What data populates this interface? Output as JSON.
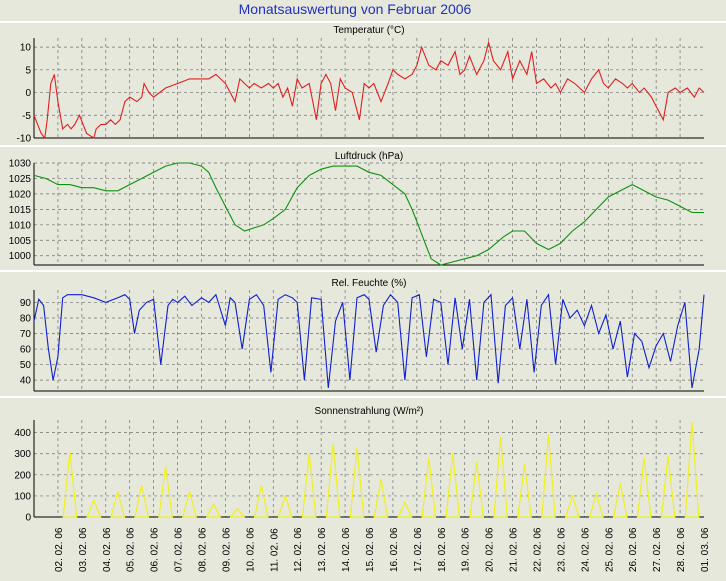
{
  "title": "Monatsauswertung von Februar 2006",
  "colors": {
    "background": "#e6e8dc",
    "title": "#2030c0",
    "temperature": "#e02020",
    "pressure": "#109010",
    "humidity": "#1020d0",
    "radiation": "#f0f020",
    "grid": "#707070",
    "separator": "#ffffff"
  },
  "x_labels": [
    "02. 02. 06",
    "03. 02. 06",
    "04. 02. 06",
    "05. 02. 06",
    "06. 02. 06",
    "07. 02. 06",
    "08. 02. 06",
    "09. 02. 06",
    "10. 02. 06",
    "11. 02. 06",
    "12. 02. 06",
    "13. 02. 06",
    "14. 02. 06",
    "15. 02. 06",
    "16. 02. 06",
    "17. 02. 06",
    "18. 02. 06",
    "19. 02. 06",
    "20. 02. 06",
    "21. 02. 06",
    "22. 02. 06",
    "23. 02. 06",
    "24. 02. 06",
    "25. 02. 06",
    "26. 02. 06",
    "27. 02. 06",
    "28. 02. 06",
    "01. 03. 06"
  ],
  "chart_data": [
    {
      "type": "line",
      "title": "Temperatur (°C)",
      "ylim": [
        -10,
        12
      ],
      "yticks": [
        -10,
        -5,
        0,
        5,
        10
      ],
      "grid": true,
      "x_unit": "days since 01.02.06 00:00",
      "series": [
        {
          "name": "Temperatur",
          "x": [
            0,
            0.15,
            0.3,
            0.45,
            0.55,
            0.7,
            0.85,
            1.0,
            1.2,
            1.4,
            1.55,
            1.7,
            1.9,
            2.2,
            2.5,
            2.6,
            2.8,
            3.0,
            3.2,
            3.4,
            3.6,
            3.8,
            4.0,
            4.3,
            4.5,
            4.6,
            4.8,
            5.0,
            5.5,
            6.0,
            6.5,
            7.0,
            7.3,
            7.6,
            8.0,
            8.2,
            8.4,
            8.6,
            8.8,
            9.0,
            9.2,
            9.5,
            9.8,
            10.0,
            10.2,
            10.4,
            10.6,
            10.8,
            11.0,
            11.2,
            11.5,
            11.8,
            12.0,
            12.2,
            12.4,
            12.6,
            12.8,
            13.0,
            13.3,
            13.6,
            13.8,
            14.0,
            14.2,
            14.5,
            14.8,
            15.0,
            15.2,
            15.5,
            15.8,
            16.0,
            16.2,
            16.5,
            16.8,
            17.0,
            17.3,
            17.6,
            17.8,
            18.0,
            18.2,
            18.5,
            18.8,
            19.0,
            19.2,
            19.5,
            19.8,
            20.0,
            20.3,
            20.6,
            20.8,
            21.0,
            21.3,
            21.6,
            21.8,
            22.0,
            22.3,
            22.6,
            22.8,
            23.0,
            23.3,
            23.6,
            23.8,
            24.0,
            24.3,
            24.6,
            24.8,
            25.0,
            25.3,
            25.5,
            25.8,
            26.0,
            26.3,
            26.5,
            26.8,
            27.0,
            27.3,
            27.6,
            27.8,
            28.0
          ],
          "y": [
            -5,
            -7,
            -9,
            -10,
            -6,
            2,
            4,
            -2,
            -8,
            -7,
            -8,
            -7,
            -5,
            -9,
            -10,
            -8,
            -7,
            -7,
            -6,
            -7,
            -6,
            -2,
            -1,
            -2,
            -1,
            2,
            0,
            -1,
            1,
            2,
            3,
            3,
            3,
            4,
            2,
            0,
            -2,
            3,
            2,
            1,
            2,
            1,
            2,
            1,
            2,
            -1,
            1,
            -3,
            3,
            1,
            2,
            -6,
            2,
            4,
            2,
            -4,
            3,
            1,
            0,
            -6,
            2,
            1,
            2,
            -2,
            2,
            5,
            4,
            3,
            4,
            6,
            10,
            6,
            5,
            7,
            6,
            9,
            4,
            5,
            8,
            4,
            7,
            11,
            7,
            5,
            9,
            3,
            7,
            4,
            9,
            2,
            3,
            1,
            2,
            0,
            3,
            2,
            1,
            0,
            3,
            5,
            2,
            1,
            3,
            2,
            1,
            2,
            0,
            1,
            -1,
            -3,
            -6,
            0,
            1,
            0,
            1,
            -1,
            1,
            0
          ]
        }
      ]
    },
    {
      "type": "line",
      "title": "Luftdruck (hPa)",
      "ylim": [
        997,
        1030
      ],
      "yticks": [
        1000,
        1005,
        1010,
        1015,
        1020,
        1025,
        1030
      ],
      "grid": true,
      "x_unit": "days since 01.02.06 00:00",
      "series": [
        {
          "name": "Luftdruck",
          "x": [
            0,
            0.5,
            1.0,
            1.5,
            2.0,
            2.5,
            3.0,
            3.5,
            4.0,
            4.5,
            5.0,
            5.5,
            6.0,
            6.5,
            7.0,
            7.3,
            7.6,
            8.0,
            8.4,
            8.8,
            9.2,
            9.6,
            10.0,
            10.5,
            11.0,
            11.5,
            12.0,
            12.5,
            13.0,
            13.5,
            14.0,
            14.5,
            15.0,
            15.5,
            15.8,
            16.0,
            16.3,
            16.6,
            17.0,
            17.5,
            18.0,
            18.5,
            19.0,
            19.3,
            19.6,
            20.0,
            20.5,
            21.0,
            21.5,
            22.0,
            22.5,
            23.0,
            23.5,
            24.0,
            24.5,
            25.0,
            25.5,
            26.0,
            26.5,
            27.0,
            27.5,
            28.0
          ],
          "y": [
            1026,
            1025,
            1023,
            1023,
            1022,
            1022,
            1021,
            1021,
            1023,
            1025,
            1027,
            1029,
            1030,
            1030,
            1029,
            1027,
            1022,
            1016,
            1010,
            1008,
            1009,
            1010,
            1012,
            1015,
            1022,
            1026,
            1028,
            1029,
            1029,
            1029,
            1027,
            1026,
            1023,
            1020,
            1015,
            1011,
            1005,
            999,
            997,
            998,
            999,
            1000,
            1002,
            1004,
            1006,
            1008,
            1008,
            1004,
            1002,
            1004,
            1008,
            1011,
            1015,
            1019,
            1021,
            1023,
            1021,
            1019,
            1018,
            1016,
            1014,
            1014
          ]
        }
      ]
    },
    {
      "type": "line",
      "title": "Rel. Feuchte (%)",
      "ylim": [
        33,
        98
      ],
      "yticks": [
        40,
        50,
        60,
        70,
        80,
        90
      ],
      "grid": true,
      "x_unit": "days since 01.02.06 00:00",
      "series": [
        {
          "name": "Rel. Feuchte",
          "x": [
            0,
            0.2,
            0.4,
            0.6,
            0.8,
            1.0,
            1.2,
            1.4,
            1.7,
            2.0,
            2.5,
            3.0,
            3.5,
            3.8,
            4.0,
            4.2,
            4.4,
            4.7,
            5.0,
            5.3,
            5.6,
            5.8,
            6.0,
            6.3,
            6.6,
            7.0,
            7.3,
            7.6,
            8.0,
            8.2,
            8.4,
            8.7,
            9.0,
            9.3,
            9.6,
            9.9,
            10.2,
            10.5,
            10.8,
            11.0,
            11.3,
            11.6,
            12.0,
            12.3,
            12.6,
            12.9,
            13.2,
            13.5,
            13.8,
            14.0,
            14.3,
            14.6,
            14.9,
            15.2,
            15.5,
            15.8,
            16.1,
            16.4,
            16.7,
            17.0,
            17.3,
            17.6,
            17.9,
            18.2,
            18.5,
            18.8,
            19.1,
            19.4,
            19.7,
            20.0,
            20.3,
            20.6,
            20.9,
            21.2,
            21.5,
            21.8,
            22.1,
            22.4,
            22.7,
            23.0,
            23.3,
            23.6,
            23.9,
            24.2,
            24.5,
            24.8,
            25.1,
            25.4,
            25.7,
            26.0,
            26.3,
            26.6,
            26.9,
            27.2,
            27.5,
            27.8,
            28.0
          ],
          "y": [
            78,
            92,
            88,
            60,
            40,
            55,
            93,
            95,
            95,
            95,
            93,
            90,
            93,
            95,
            92,
            70,
            85,
            90,
            92,
            50,
            88,
            92,
            90,
            94,
            88,
            93,
            90,
            95,
            75,
            93,
            90,
            60,
            92,
            95,
            88,
            45,
            92,
            95,
            93,
            90,
            40,
            93,
            92,
            35,
            78,
            90,
            40,
            93,
            95,
            92,
            58,
            88,
            95,
            90,
            40,
            93,
            95,
            55,
            92,
            90,
            50,
            93,
            60,
            92,
            40,
            90,
            95,
            38,
            88,
            93,
            60,
            92,
            45,
            88,
            95,
            50,
            92,
            80,
            85,
            75,
            88,
            70,
            82,
            60,
            78,
            42,
            70,
            65,
            48,
            62,
            70,
            52,
            75,
            90,
            35,
            60,
            95
          ]
        }
      ]
    },
    {
      "type": "bar",
      "title": "Sonnenstrahlung (W/m²)",
      "ylim": [
        0,
        460
      ],
      "yticks": [
        0,
        100,
        200,
        300,
        400
      ],
      "grid": true,
      "x_unit": "day of February 2006 (value = daily peak at noon)",
      "series": [
        {
          "name": "Sonnenstrahlung",
          "x": [
            1,
            2,
            3,
            4,
            5,
            6,
            7,
            8,
            9,
            10,
            11,
            12,
            13,
            14,
            15,
            16,
            17,
            18,
            19,
            20,
            21,
            22,
            23,
            24,
            25,
            26,
            27
          ],
          "values": [
            310,
            80,
            120,
            150,
            240,
            120,
            60,
            40,
            150,
            100,
            300,
            350,
            330,
            180,
            70,
            280,
            300,
            260,
            380,
            250,
            390,
            100,
            110,
            160,
            280,
            290,
            450
          ]
        }
      ]
    }
  ]
}
